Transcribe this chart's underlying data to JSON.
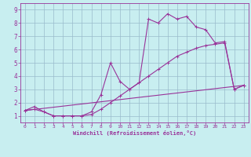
{
  "bg_color": "#c8eef0",
  "line_color": "#993399",
  "xlim": [
    -0.5,
    23.5
  ],
  "ylim": [
    0.5,
    9.5
  ],
  "xticks": [
    0,
    1,
    2,
    3,
    4,
    5,
    6,
    7,
    8,
    9,
    10,
    11,
    12,
    13,
    14,
    15,
    16,
    17,
    18,
    19,
    20,
    21,
    22,
    23
  ],
  "yticks": [
    1,
    2,
    3,
    4,
    5,
    6,
    7,
    8,
    9
  ],
  "grid_color": "#99bbcc",
  "xlabel": "Windchill (Refroidissement éolien,°C)",
  "line1_x": [
    0,
    1,
    2,
    3,
    4,
    5,
    6,
    7,
    8,
    9,
    10,
    11,
    12,
    13,
    14,
    15,
    16,
    17,
    18,
    19,
    20,
    21,
    22,
    23
  ],
  "line1_y": [
    1.4,
    1.7,
    1.3,
    1.0,
    1.0,
    1.0,
    1.0,
    1.3,
    2.6,
    5.0,
    3.6,
    3.0,
    3.5,
    8.3,
    8.0,
    8.7,
    8.3,
    8.5,
    7.7,
    7.5,
    6.5,
    6.6,
    3.0,
    3.3
  ],
  "line2_x": [
    0,
    1,
    2,
    3,
    4,
    5,
    6,
    7,
    8,
    9,
    10,
    11,
    12,
    13,
    14,
    15,
    16,
    17,
    18,
    19,
    20,
    21,
    22,
    23
  ],
  "line2_y": [
    1.4,
    1.5,
    1.3,
    1.0,
    1.0,
    1.0,
    1.0,
    1.1,
    1.5,
    2.0,
    2.5,
    3.0,
    3.5,
    4.0,
    4.5,
    5.0,
    5.5,
    5.8,
    6.1,
    6.3,
    6.4,
    6.5,
    3.0,
    3.3
  ],
  "line3_x": [
    0,
    23
  ],
  "line3_y": [
    1.4,
    3.3
  ]
}
